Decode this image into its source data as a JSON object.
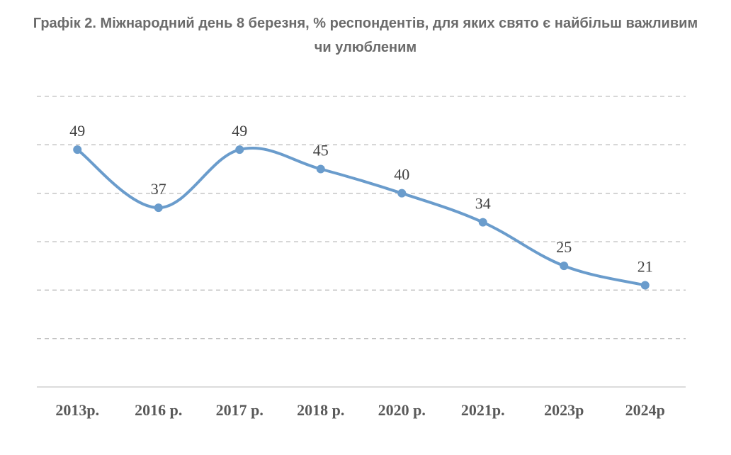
{
  "chart_data": {
    "type": "line",
    "title": "Графік 2. Міжнародний день 8 березня, % респондентів, для яких свято є найбільш важливим чи улюбленим",
    "categories": [
      "2013р.",
      "2016 р.",
      "2017 р.",
      "2018 р.",
      "2020 р.",
      "2021р.",
      "2023р",
      "2024р"
    ],
    "series": [
      {
        "values": [
          49,
          37,
          49,
          45,
          40,
          34,
          25,
          21
        ]
      }
    ],
    "ylim": [
      0,
      60
    ],
    "grid": true,
    "legend": "none",
    "colors": {
      "line": "#6a9ccc",
      "grid": "#bfbfbf",
      "axis": "#d0d0d0"
    }
  }
}
